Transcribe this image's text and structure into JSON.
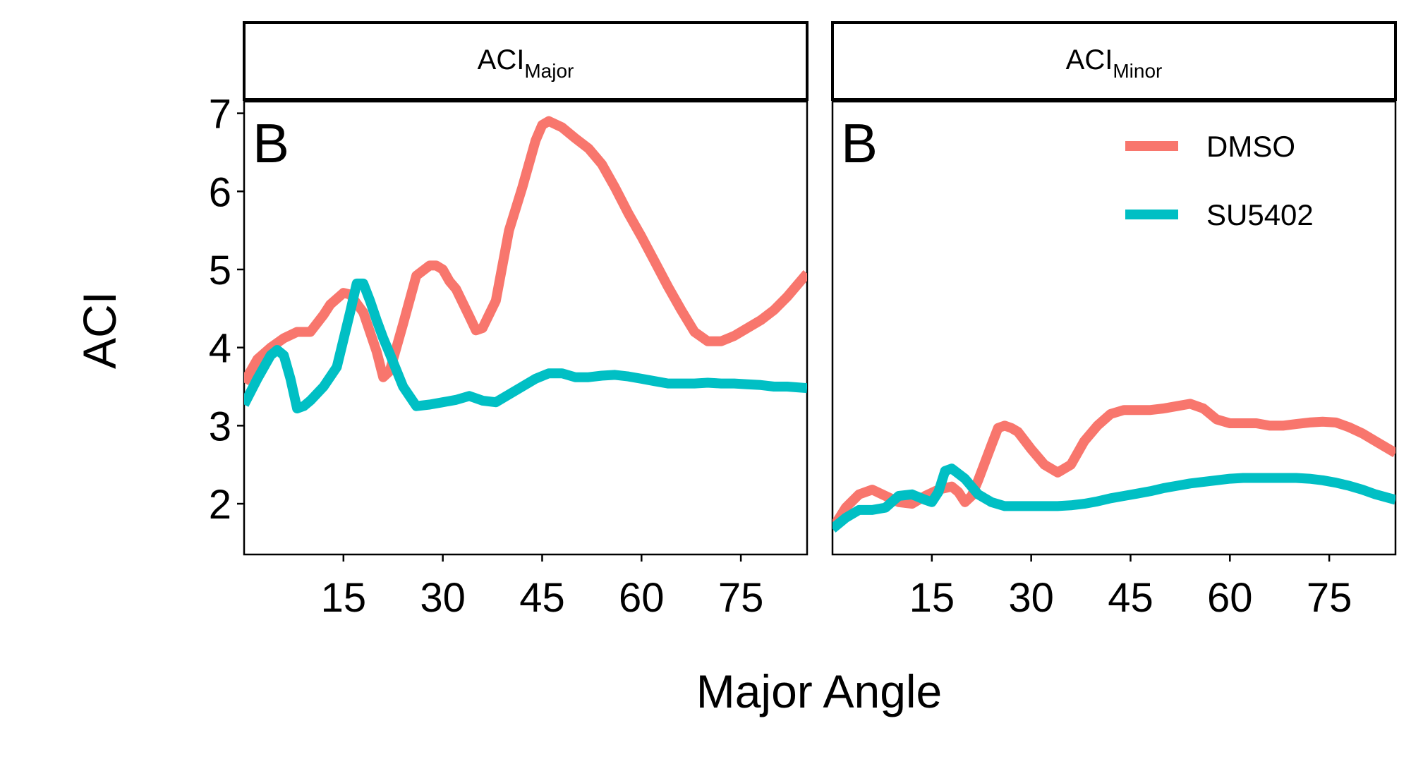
{
  "chart_data": {
    "type": "line",
    "xlabel": "Major Angle",
    "ylabel": "ACI",
    "xlim": [
      0,
      85
    ],
    "ylim": [
      1.35,
      7.15
    ],
    "x_ticks": [
      15,
      30,
      45,
      60,
      75
    ],
    "y_ticks": [
      2,
      3,
      4,
      5,
      6,
      7
    ],
    "grid": false,
    "legend": {
      "position": "top-right",
      "entries": [
        {
          "name": "DMSO",
          "color": "#F8766D"
        },
        {
          "name": "SU5402",
          "color": "#00BFC4"
        }
      ]
    },
    "panels": [
      {
        "strip": {
          "main": "ACI",
          "sub": "Major"
        },
        "tag": "B",
        "show_y_axis": true,
        "show_legend": false,
        "series": [
          {
            "name": "DMSO",
            "color": "#F8766D",
            "x": [
              0,
              2,
              4,
              6,
              8,
              10,
              12,
              13,
              15,
              16,
              18,
              20,
              21,
              22,
              24,
              26,
              28,
              29,
              30,
              31,
              32,
              34,
              35,
              36,
              38,
              40,
              42,
              44,
              45,
              46,
              48,
              50,
              52,
              54,
              56,
              58,
              60,
              62,
              64,
              66,
              68,
              70,
              72,
              74,
              76,
              78,
              80,
              82,
              85
            ],
            "y": [
              3.55,
              3.85,
              4.0,
              4.12,
              4.2,
              4.2,
              4.42,
              4.55,
              4.7,
              4.68,
              4.45,
              3.95,
              3.62,
              3.7,
              4.3,
              4.92,
              5.05,
              5.05,
              5.0,
              4.85,
              4.75,
              4.4,
              4.22,
              4.25,
              4.6,
              5.5,
              6.05,
              6.65,
              6.85,
              6.9,
              6.82,
              6.68,
              6.55,
              6.35,
              6.05,
              5.72,
              5.42,
              5.1,
              4.78,
              4.48,
              4.2,
              4.08,
              4.08,
              4.15,
              4.25,
              4.35,
              4.48,
              4.65,
              4.95
            ]
          },
          {
            "name": "SU5402",
            "color": "#00BFC4",
            "x": [
              0,
              2,
              4,
              5,
              6,
              7,
              8,
              9,
              10,
              12,
              14,
              16,
              17,
              18,
              19,
              20,
              21,
              22,
              24,
              26,
              28,
              30,
              32,
              34,
              36,
              38,
              40,
              42,
              44,
              46,
              48,
              50,
              52,
              54,
              56,
              58,
              60,
              62,
              64,
              66,
              68,
              70,
              72,
              74,
              76,
              78,
              80,
              82,
              85
            ],
            "y": [
              3.27,
              3.6,
              3.9,
              3.97,
              3.9,
              3.6,
              3.22,
              3.25,
              3.32,
              3.5,
              3.75,
              4.45,
              4.82,
              4.82,
              4.6,
              4.35,
              4.12,
              3.92,
              3.5,
              3.25,
              3.27,
              3.3,
              3.33,
              3.38,
              3.32,
              3.3,
              3.4,
              3.5,
              3.6,
              3.67,
              3.67,
              3.62,
              3.62,
              3.64,
              3.65,
              3.63,
              3.6,
              3.57,
              3.54,
              3.54,
              3.54,
              3.55,
              3.54,
              3.54,
              3.53,
              3.52,
              3.5,
              3.5,
              3.48
            ]
          }
        ]
      },
      {
        "strip": {
          "main": "ACI",
          "sub": "Minor"
        },
        "tag": "B",
        "show_y_axis": false,
        "show_legend": true,
        "series": [
          {
            "name": "DMSO",
            "color": "#F8766D",
            "x": [
              0,
              2,
              4,
              6,
              8,
              10,
              12,
              14,
              16,
              18,
              19,
              20,
              21,
              22,
              24,
              25,
              26,
              27,
              28,
              30,
              32,
              34,
              36,
              38,
              40,
              42,
              44,
              46,
              48,
              50,
              52,
              54,
              56,
              58,
              60,
              62,
              64,
              66,
              68,
              70,
              72,
              74,
              76,
              78,
              80,
              82,
              85
            ],
            "y": [
              1.68,
              1.95,
              2.12,
              2.18,
              2.1,
              2.02,
              2.0,
              2.1,
              2.18,
              2.22,
              2.15,
              2.02,
              2.1,
              2.3,
              2.75,
              2.97,
              3.0,
              2.97,
              2.92,
              2.7,
              2.5,
              2.4,
              2.5,
              2.8,
              3.0,
              3.15,
              3.2,
              3.2,
              3.2,
              3.22,
              3.25,
              3.28,
              3.22,
              3.08,
              3.03,
              3.03,
              3.03,
              3.0,
              3.0,
              3.02,
              3.04,
              3.05,
              3.04,
              2.98,
              2.9,
              2.8,
              2.65
            ]
          },
          {
            "name": "SU5402",
            "color": "#00BFC4",
            "x": [
              0,
              2,
              4,
              6,
              8,
              10,
              12,
              14,
              15,
              16,
              17,
              18,
              20,
              22,
              24,
              26,
              28,
              30,
              32,
              34,
              36,
              38,
              40,
              42,
              44,
              46,
              48,
              50,
              52,
              54,
              56,
              58,
              60,
              62,
              64,
              66,
              68,
              70,
              72,
              74,
              76,
              78,
              80,
              82,
              85
            ],
            "y": [
              1.68,
              1.82,
              1.92,
              1.92,
              1.95,
              2.1,
              2.12,
              2.05,
              2.02,
              2.15,
              2.42,
              2.45,
              2.32,
              2.12,
              2.02,
              1.97,
              1.97,
              1.97,
              1.97,
              1.97,
              1.98,
              2.0,
              2.03,
              2.07,
              2.1,
              2.13,
              2.16,
              2.2,
              2.23,
              2.26,
              2.28,
              2.3,
              2.32,
              2.33,
              2.33,
              2.33,
              2.33,
              2.33,
              2.32,
              2.3,
              2.27,
              2.23,
              2.18,
              2.12,
              2.05
            ]
          }
        ]
      }
    ]
  }
}
